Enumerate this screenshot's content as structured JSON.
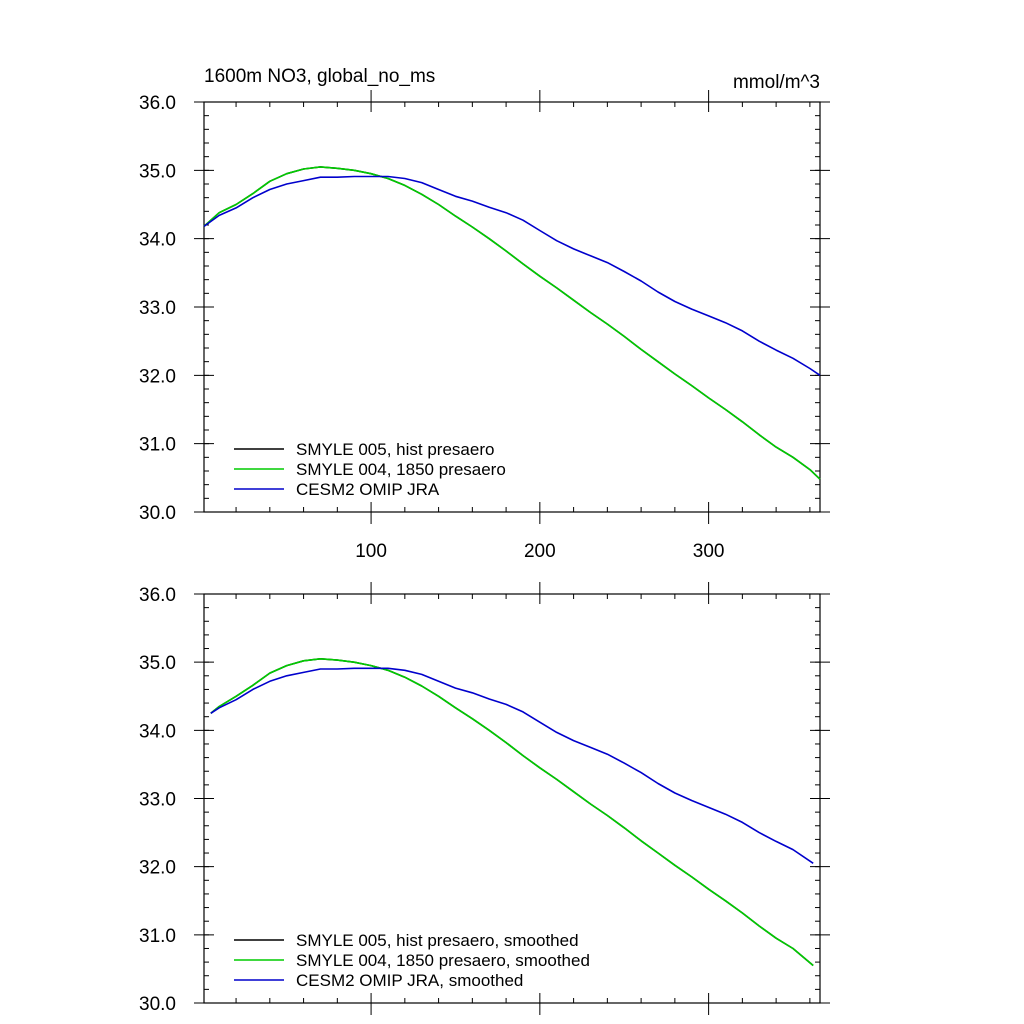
{
  "colors": {
    "smyle005": "#000000",
    "smyle004": "#00cc00",
    "cesm2": "#0000cc",
    "frame": "#000000",
    "background": "#ffffff"
  },
  "header": {
    "title": "1600m NO3, global_no_ms",
    "units": "mmol/m^3"
  },
  "chart_data": [
    {
      "type": "line",
      "title": "1600m NO3, global_no_ms",
      "units": "mmol/m^3",
      "xlabel": "",
      "ylabel": "",
      "xlim": [
        1,
        366
      ],
      "ylim": [
        30.0,
        36.0
      ],
      "x_ticks": [
        100,
        200,
        300
      ],
      "x_tick_labels": [
        "100",
        "200",
        "300"
      ],
      "y_ticks": [
        30.0,
        31.0,
        32.0,
        33.0,
        34.0,
        35.0,
        36.0
      ],
      "y_tick_labels": [
        "30.0",
        "31.0",
        "32.0",
        "33.0",
        "34.0",
        "35.0",
        "36.0"
      ],
      "legend_position": "bottom-left",
      "series": [
        {
          "name": "SMYLE 005, hist presaero",
          "color": "#000000",
          "x": [
            1,
            10,
            20,
            30,
            40,
            50,
            60,
            70,
            80,
            90,
            100,
            110,
            120,
            130,
            140,
            150,
            160,
            170,
            180,
            190,
            200,
            210,
            220,
            230,
            240,
            250,
            260,
            270,
            280,
            290,
            300,
            310,
            320,
            330,
            340,
            350,
            360,
            366
          ],
          "y": [
            34.18,
            34.38,
            34.5,
            34.66,
            34.84,
            34.95,
            35.02,
            35.05,
            35.03,
            35.0,
            34.95,
            34.88,
            34.78,
            34.65,
            34.5,
            34.33,
            34.17,
            34.0,
            33.82,
            33.63,
            33.45,
            33.28,
            33.1,
            32.92,
            32.75,
            32.57,
            32.38,
            32.2,
            32.02,
            31.85,
            31.67,
            31.5,
            31.32,
            31.13,
            30.95,
            30.8,
            30.62,
            30.48
          ]
        },
        {
          "name": "SMYLE 004, 1850 presaero",
          "color": "#00cc00",
          "x": [
            1,
            10,
            20,
            30,
            40,
            50,
            60,
            70,
            80,
            90,
            100,
            110,
            120,
            130,
            140,
            150,
            160,
            170,
            180,
            190,
            200,
            210,
            220,
            230,
            240,
            250,
            260,
            270,
            280,
            290,
            300,
            310,
            320,
            330,
            340,
            350,
            360,
            366
          ],
          "y": [
            34.18,
            34.38,
            34.5,
            34.66,
            34.84,
            34.95,
            35.02,
            35.05,
            35.03,
            35.0,
            34.95,
            34.88,
            34.78,
            34.65,
            34.5,
            34.33,
            34.17,
            34.0,
            33.82,
            33.63,
            33.45,
            33.28,
            33.1,
            32.92,
            32.75,
            32.57,
            32.38,
            32.2,
            32.02,
            31.85,
            31.67,
            31.5,
            31.32,
            31.13,
            30.95,
            30.8,
            30.62,
            30.48
          ]
        },
        {
          "name": "CESM2 OMIP JRA",
          "color": "#0000cc",
          "x": [
            1,
            10,
            20,
            30,
            40,
            50,
            60,
            70,
            80,
            90,
            100,
            110,
            120,
            130,
            140,
            150,
            160,
            170,
            180,
            190,
            200,
            210,
            220,
            230,
            240,
            250,
            260,
            270,
            280,
            290,
            300,
            310,
            320,
            330,
            340,
            350,
            360,
            366
          ],
          "y": [
            34.18,
            34.34,
            34.45,
            34.6,
            34.72,
            34.8,
            34.85,
            34.9,
            34.9,
            34.91,
            34.91,
            34.91,
            34.88,
            34.82,
            34.72,
            34.62,
            34.55,
            34.46,
            34.38,
            34.27,
            34.12,
            33.97,
            33.85,
            33.75,
            33.65,
            33.52,
            33.38,
            33.22,
            33.08,
            32.97,
            32.87,
            32.77,
            32.65,
            32.5,
            32.37,
            32.25,
            32.1,
            32.0
          ]
        }
      ]
    },
    {
      "type": "line",
      "title": "",
      "xlabel": "",
      "ylabel": "",
      "xlim": [
        1,
        366
      ],
      "ylim": [
        30.0,
        36.0
      ],
      "x_ticks": [
        100,
        200,
        300
      ],
      "x_tick_labels": [],
      "y_ticks": [
        30.0,
        31.0,
        32.0,
        33.0,
        34.0,
        35.0,
        36.0
      ],
      "y_tick_labels": [
        "30.0",
        "31.0",
        "32.0",
        "33.0",
        "34.0",
        "35.0",
        "36.0"
      ],
      "legend_position": "bottom-left",
      "series": [
        {
          "name": "SMYLE 005, hist presaero, smoothed",
          "color": "#000000",
          "x": [
            5,
            10,
            20,
            30,
            40,
            50,
            60,
            70,
            80,
            90,
            100,
            110,
            120,
            130,
            140,
            150,
            160,
            170,
            180,
            190,
            200,
            210,
            220,
            230,
            240,
            250,
            260,
            270,
            280,
            290,
            300,
            310,
            320,
            330,
            340,
            350,
            362
          ],
          "y": [
            34.25,
            34.35,
            34.5,
            34.66,
            34.84,
            34.95,
            35.02,
            35.05,
            35.03,
            35.0,
            34.95,
            34.88,
            34.78,
            34.65,
            34.5,
            34.33,
            34.17,
            34.0,
            33.82,
            33.63,
            33.45,
            33.28,
            33.1,
            32.92,
            32.75,
            32.57,
            32.38,
            32.2,
            32.02,
            31.85,
            31.67,
            31.5,
            31.32,
            31.13,
            30.95,
            30.8,
            30.55
          ]
        },
        {
          "name": "SMYLE 004, 1850 presaero, smoothed",
          "color": "#00cc00",
          "x": [
            5,
            10,
            20,
            30,
            40,
            50,
            60,
            70,
            80,
            90,
            100,
            110,
            120,
            130,
            140,
            150,
            160,
            170,
            180,
            190,
            200,
            210,
            220,
            230,
            240,
            250,
            260,
            270,
            280,
            290,
            300,
            310,
            320,
            330,
            340,
            350,
            362
          ],
          "y": [
            34.25,
            34.35,
            34.5,
            34.66,
            34.84,
            34.95,
            35.02,
            35.05,
            35.03,
            35.0,
            34.95,
            34.88,
            34.78,
            34.65,
            34.5,
            34.33,
            34.17,
            34.0,
            33.82,
            33.63,
            33.45,
            33.28,
            33.1,
            32.92,
            32.75,
            32.57,
            32.38,
            32.2,
            32.02,
            31.85,
            31.67,
            31.5,
            31.32,
            31.13,
            30.95,
            30.8,
            30.55
          ]
        },
        {
          "name": "CESM2 OMIP JRA, smoothed",
          "color": "#0000cc",
          "x": [
            5,
            10,
            20,
            30,
            40,
            50,
            60,
            70,
            80,
            90,
            100,
            110,
            120,
            130,
            140,
            150,
            160,
            170,
            180,
            190,
            200,
            210,
            220,
            230,
            240,
            250,
            260,
            270,
            280,
            290,
            300,
            310,
            320,
            330,
            340,
            350,
            362
          ],
          "y": [
            34.25,
            34.33,
            34.45,
            34.6,
            34.72,
            34.8,
            34.85,
            34.9,
            34.9,
            34.91,
            34.91,
            34.91,
            34.88,
            34.82,
            34.72,
            34.62,
            34.55,
            34.46,
            34.38,
            34.27,
            34.12,
            33.97,
            33.85,
            33.75,
            33.65,
            33.52,
            33.38,
            33.22,
            33.08,
            32.97,
            32.87,
            32.77,
            32.65,
            32.5,
            32.37,
            32.25,
            32.05
          ]
        }
      ]
    }
  ]
}
